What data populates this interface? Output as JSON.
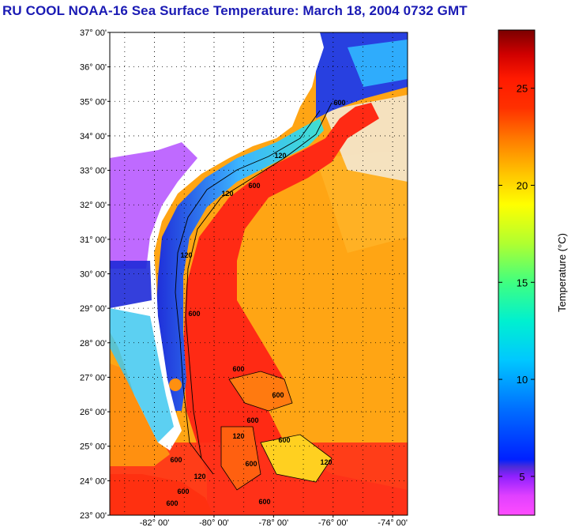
{
  "title": "RU COOL  NOAA-16  Sea Surface Temperature:  March 18, 2004 0732 GMT",
  "map": {
    "lat_labels": [
      "37° 00'",
      "36° 00'",
      "35° 00'",
      "34° 00'",
      "33° 00'",
      "32° 00'",
      "31° 00'",
      "30° 00'",
      "29° 00'",
      "28° 00'",
      "27° 00'",
      "26° 00'",
      "25° 00'",
      "24° 00'",
      "23° 00'"
    ],
    "lon_labels": [
      "-82° 00'",
      "-80° 00'",
      "-78° 00'",
      "-76° 00'",
      "-74° 00'"
    ],
    "lat_range": [
      23,
      37
    ],
    "lon_range": [
      -83.5,
      -73.5
    ],
    "grid": "dotted",
    "isobath_labels": [
      "600",
      "120",
      "120",
      "600",
      "120",
      "600",
      "600",
      "600",
      "600",
      "120",
      "600",
      "600",
      "120",
      "600",
      "600",
      "120",
      "600",
      "600"
    ],
    "colors": {
      "land": "#ffffff",
      "gulf_stream": "#ff2a14",
      "sargasso": "#ffa514",
      "shelf_cold": "#3cb4ff",
      "coastal_cold": "#1e2ad8",
      "inland_cold": "#b450ff"
    }
  },
  "colorbar": {
    "label": "Temperature (°C)",
    "ticks": [
      "25",
      "20",
      "15",
      "10",
      "5"
    ],
    "range": [
      3,
      28
    ],
    "colors": [
      "#ff4cff",
      "#c000ff",
      "#4a2cd8",
      "#0020ff",
      "#0090ff",
      "#00e0e8",
      "#40ff80",
      "#c0ff20",
      "#ffff00",
      "#ffb000",
      "#ff5000",
      "#ff1a00",
      "#d00000",
      "#7a0000"
    ]
  }
}
